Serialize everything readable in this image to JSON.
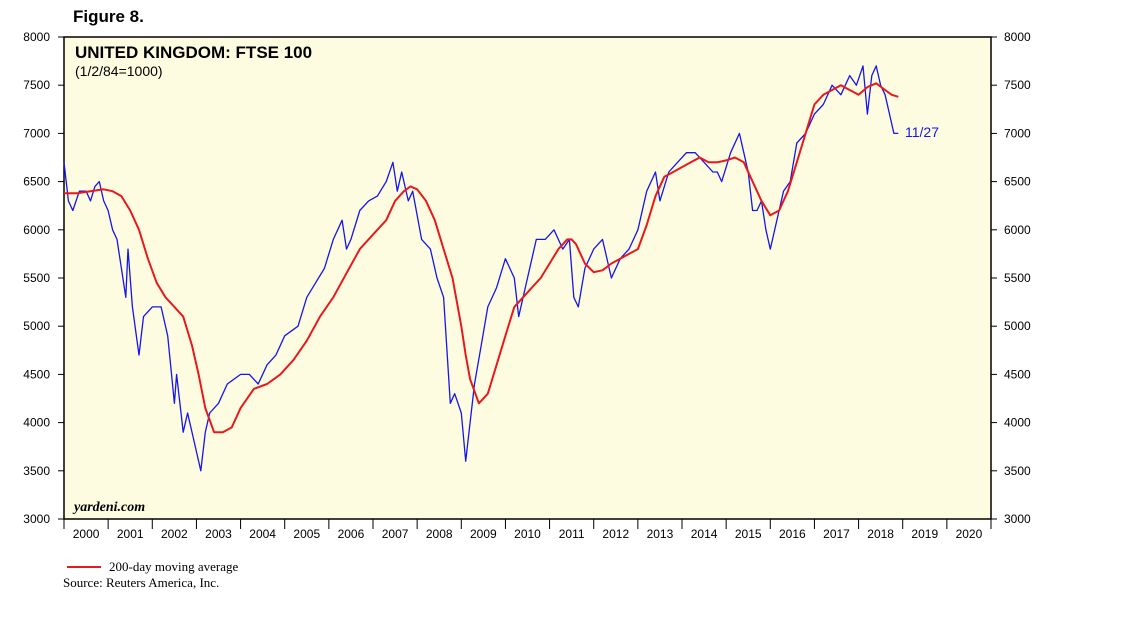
{
  "figure_label": "Figure 8.",
  "chart_data": {
    "type": "line",
    "title": "UNITED KINGDOM: FTSE 100",
    "subtitle": "(1/2/84=1000)",
    "watermark": "yardeni.com",
    "end_label": "11/27",
    "xlabel": "",
    "ylabel": "",
    "x_range": [
      2000,
      2021
    ],
    "ylim": [
      3000,
      8000
    ],
    "y_ticks": [
      3000,
      3500,
      4000,
      4500,
      5000,
      5500,
      6000,
      6500,
      7000,
      7500,
      8000
    ],
    "x_tick_labels": [
      "2000",
      "2001",
      "2002",
      "2003",
      "2004",
      "2005",
      "2006",
      "2007",
      "2008",
      "2009",
      "2010",
      "2011",
      "2012",
      "2013",
      "2014",
      "2015",
      "2016",
      "2017",
      "2018",
      "2019",
      "2020"
    ],
    "grid": false,
    "colors": {
      "index": "#1515ee",
      "moving_average": "#e8191c",
      "plot_background": "#fefce0"
    },
    "series": [
      {
        "name": "",
        "x": [
          2000.0,
          2000.1,
          2000.2,
          2000.35,
          2000.5,
          2000.6,
          2000.7,
          2000.8,
          2000.9,
          2001.0,
          2001.1,
          2001.2,
          2001.3,
          2001.4,
          2001.45,
          2001.55,
          2001.7,
          2001.8,
          2002.0,
          2002.2,
          2002.35,
          2002.5,
          2002.55,
          2002.7,
          2002.8,
          2003.0,
          2003.1,
          2003.2,
          2003.3,
          2003.5,
          2003.7,
          2004.0,
          2004.2,
          2004.4,
          2004.6,
          2004.8,
          2005.0,
          2005.3,
          2005.5,
          2005.7,
          2005.9,
          2006.1,
          2006.3,
          2006.4,
          2006.5,
          2006.7,
          2006.9,
          2007.1,
          2007.3,
          2007.45,
          2007.55,
          2007.65,
          2007.8,
          2007.9,
          2008.1,
          2008.3,
          2008.45,
          2008.6,
          2008.75,
          2008.85,
          2009.0,
          2009.1,
          2009.2,
          2009.3,
          2009.45,
          2009.6,
          2009.8,
          2010.0,
          2010.2,
          2010.3,
          2010.4,
          2010.5,
          2010.7,
          2010.9,
          2011.1,
          2011.3,
          2011.45,
          2011.55,
          2011.65,
          2011.8,
          2012.0,
          2012.2,
          2012.4,
          2012.6,
          2012.8,
          2013.0,
          2013.2,
          2013.4,
          2013.5,
          2013.7,
          2013.9,
          2014.1,
          2014.3,
          2014.5,
          2014.7,
          2014.8,
          2014.9,
          2015.1,
          2015.3,
          2015.4,
          2015.5,
          2015.6,
          2015.7,
          2015.8,
          2015.9,
          2016.0,
          2016.1,
          2016.2,
          2016.3,
          2016.45,
          2016.6,
          2016.8,
          2017.0,
          2017.2,
          2017.4,
          2017.6,
          2017.8,
          2017.95,
          2018.1,
          2018.2,
          2018.3,
          2018.4,
          2018.5,
          2018.6,
          2018.7,
          2018.8,
          2018.9
        ],
        "values": [
          6700,
          6300,
          6200,
          6400,
          6400,
          6300,
          6450,
          6500,
          6300,
          6200,
          6000,
          5900,
          5600,
          5300,
          5800,
          5200,
          4700,
          5100,
          5200,
          5200,
          4900,
          4200,
          4500,
          3900,
          4100,
          3700,
          3500,
          3900,
          4100,
          4200,
          4400,
          4500,
          4500,
          4400,
          4600,
          4700,
          4900,
          5000,
          5300,
          5450,
          5600,
          5900,
          6100,
          5800,
          5900,
          6200,
          6300,
          6350,
          6500,
          6700,
          6400,
          6600,
          6300,
          6400,
          5900,
          5800,
          5500,
          5300,
          4200,
          4300,
          4100,
          3600,
          4000,
          4400,
          4800,
          5200,
          5400,
          5700,
          5500,
          5100,
          5300,
          5500,
          5900,
          5900,
          6000,
          5800,
          5900,
          5300,
          5200,
          5600,
          5800,
          5900,
          5500,
          5700,
          5800,
          6000,
          6400,
          6600,
          6300,
          6600,
          6700,
          6800,
          6800,
          6700,
          6600,
          6600,
          6500,
          6800,
          7000,
          6800,
          6600,
          6200,
          6200,
          6300,
          6000,
          5800,
          6000,
          6200,
          6400,
          6500,
          6900,
          7000,
          7200,
          7300,
          7500,
          7400,
          7600,
          7500,
          7700,
          7200,
          7600,
          7700,
          7500,
          7400,
          7200,
          7000,
          7000
        ]
      },
      {
        "name": "200-day moving average",
        "x": [
          2000.0,
          2000.3,
          2000.6,
          2000.9,
          2001.1,
          2001.3,
          2001.5,
          2001.7,
          2001.9,
          2002.1,
          2002.3,
          2002.5,
          2002.7,
          2002.9,
          2003.05,
          2003.2,
          2003.4,
          2003.6,
          2003.8,
          2004.0,
          2004.3,
          2004.6,
          2004.9,
          2005.2,
          2005.5,
          2005.8,
          2006.1,
          2006.4,
          2006.7,
          2007.0,
          2007.3,
          2007.5,
          2007.7,
          2007.85,
          2008.0,
          2008.2,
          2008.4,
          2008.6,
          2008.8,
          2009.0,
          2009.1,
          2009.2,
          2009.4,
          2009.6,
          2009.8,
          2010.0,
          2010.2,
          2010.4,
          2010.6,
          2010.8,
          2011.0,
          2011.2,
          2011.4,
          2011.5,
          2011.6,
          2011.8,
          2012.0,
          2012.2,
          2012.4,
          2012.6,
          2012.8,
          2013.0,
          2013.2,
          2013.4,
          2013.6,
          2013.8,
          2014.0,
          2014.2,
          2014.4,
          2014.6,
          2014.8,
          2015.0,
          2015.2,
          2015.4,
          2015.6,
          2015.8,
          2016.0,
          2016.2,
          2016.4,
          2016.6,
          2016.8,
          2017.0,
          2017.2,
          2017.4,
          2017.6,
          2017.8,
          2018.0,
          2018.2,
          2018.4,
          2018.6,
          2018.75,
          2018.9
        ],
        "values": [
          6380,
          6380,
          6400,
          6420,
          6400,
          6350,
          6200,
          6000,
          5700,
          5450,
          5300,
          5200,
          5100,
          4800,
          4500,
          4150,
          3900,
          3900,
          3950,
          4150,
          4350,
          4400,
          4500,
          4650,
          4850,
          5100,
          5300,
          5550,
          5800,
          5950,
          6100,
          6300,
          6400,
          6450,
          6420,
          6300,
          6100,
          5800,
          5500,
          5000,
          4700,
          4450,
          4200,
          4300,
          4600,
          4900,
          5200,
          5300,
          5400,
          5500,
          5650,
          5800,
          5900,
          5900,
          5850,
          5650,
          5560,
          5580,
          5650,
          5700,
          5750,
          5800,
          6050,
          6350,
          6550,
          6600,
          6650,
          6700,
          6750,
          6700,
          6700,
          6720,
          6750,
          6700,
          6500,
          6300,
          6150,
          6200,
          6400,
          6700,
          7000,
          7300,
          7400,
          7450,
          7500,
          7450,
          7400,
          7480,
          7520,
          7450,
          7400,
          7380
        ]
      }
    ]
  },
  "legend": {
    "line_label": "200-day moving average",
    "source": "Source: Reuters America, Inc."
  }
}
